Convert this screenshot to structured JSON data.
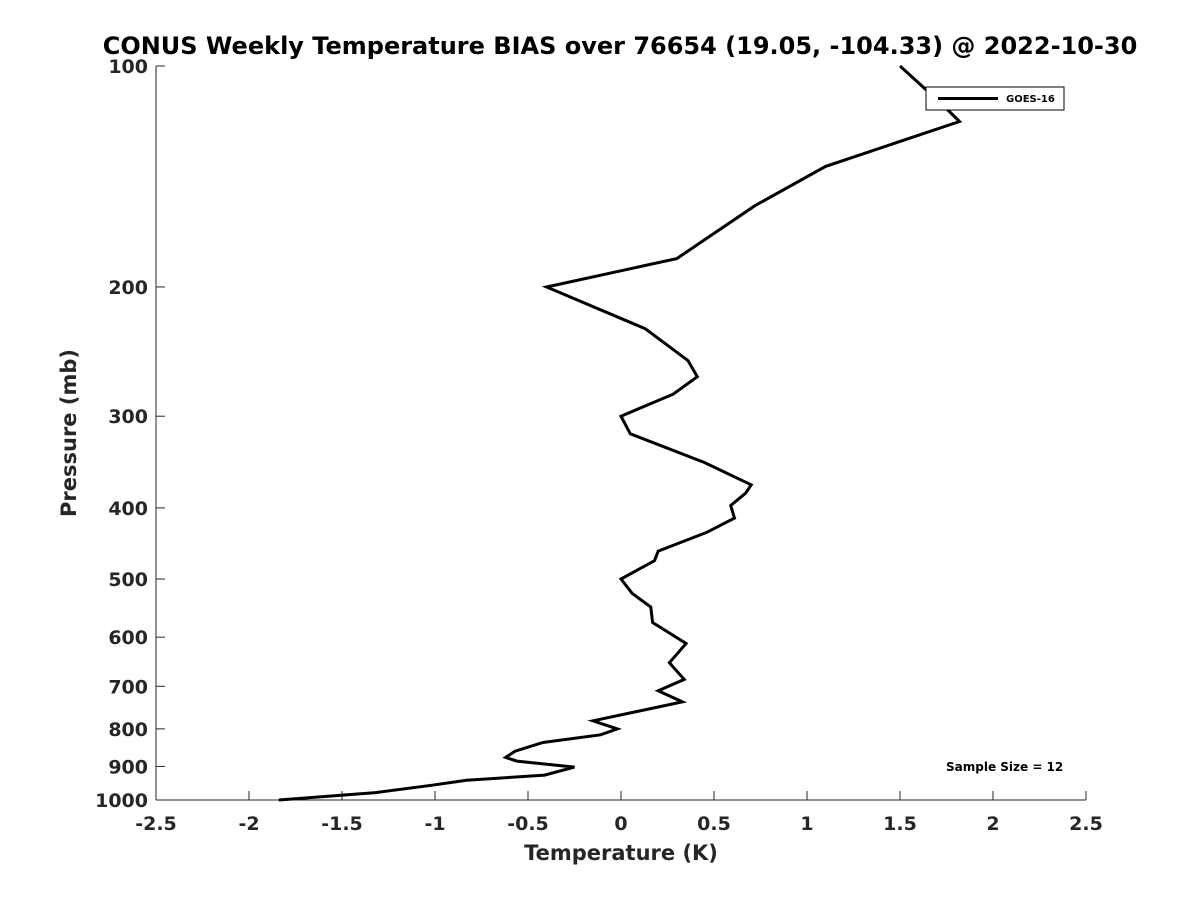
{
  "chart_data": {
    "type": "line",
    "title": "CONUS Weekly Temperature BIAS over 76654 (19.05, -104.33) @ 2022-10-30",
    "xlabel": "Temperature (K)",
    "ylabel": "Pressure (mb)",
    "xlim": [
      -2.5,
      2.5
    ],
    "ylim": [
      1000,
      100
    ],
    "yscale": "log",
    "y_reversed": true,
    "x_ticks": [
      -2.5,
      -2,
      -1.5,
      -1,
      -0.5,
      0,
      0.5,
      1,
      1.5,
      2,
      2.5
    ],
    "x_tick_labels": [
      "-2.5",
      "-2",
      "-1.5",
      "-1",
      "-0.5",
      "0",
      "0.5",
      "1",
      "1.5",
      "2",
      "2.5"
    ],
    "y_ticks": [
      100,
      200,
      300,
      400,
      500,
      600,
      700,
      800,
      900,
      1000
    ],
    "y_tick_labels": [
      "100",
      "200",
      "300",
      "400",
      "500",
      "600",
      "700",
      "800",
      "900",
      "1000"
    ],
    "grid": false,
    "legend_position": "top-right",
    "annotation": "Sample Size = 12",
    "series": [
      {
        "name": "GOES-16",
        "color": "#000000",
        "points": [
          {
            "x": 1.5,
            "y": 100
          },
          {
            "x": 1.73,
            "y": 113
          },
          {
            "x": 1.82,
            "y": 119
          },
          {
            "x": 1.1,
            "y": 137
          },
          {
            "x": 0.72,
            "y": 155
          },
          {
            "x": 0.3,
            "y": 183
          },
          {
            "x": -0.4,
            "y": 200
          },
          {
            "x": 0.13,
            "y": 228
          },
          {
            "x": 0.36,
            "y": 252
          },
          {
            "x": 0.41,
            "y": 265
          },
          {
            "x": 0.28,
            "y": 280
          },
          {
            "x": 0.0,
            "y": 300
          },
          {
            "x": 0.05,
            "y": 317
          },
          {
            "x": 0.45,
            "y": 347
          },
          {
            "x": 0.7,
            "y": 372
          },
          {
            "x": 0.67,
            "y": 382
          },
          {
            "x": 0.59,
            "y": 397
          },
          {
            "x": 0.61,
            "y": 413
          },
          {
            "x": 0.46,
            "y": 432
          },
          {
            "x": 0.2,
            "y": 458
          },
          {
            "x": 0.18,
            "y": 472
          },
          {
            "x": 0.0,
            "y": 500
          },
          {
            "x": 0.06,
            "y": 523
          },
          {
            "x": 0.16,
            "y": 546
          },
          {
            "x": 0.17,
            "y": 573
          },
          {
            "x": 0.35,
            "y": 612
          },
          {
            "x": 0.3,
            "y": 633
          },
          {
            "x": 0.26,
            "y": 650
          },
          {
            "x": 0.34,
            "y": 685
          },
          {
            "x": 0.2,
            "y": 710
          },
          {
            "x": 0.33,
            "y": 735
          },
          {
            "x": -0.15,
            "y": 780
          },
          {
            "x": -0.02,
            "y": 800
          },
          {
            "x": -0.11,
            "y": 815
          },
          {
            "x": -0.42,
            "y": 835
          },
          {
            "x": -0.57,
            "y": 858
          },
          {
            "x": -0.62,
            "y": 875
          },
          {
            "x": -0.56,
            "y": 885
          },
          {
            "x": -0.25,
            "y": 902
          },
          {
            "x": -0.41,
            "y": 925
          },
          {
            "x": -0.83,
            "y": 940
          },
          {
            "x": -1.02,
            "y": 955
          },
          {
            "x": -1.32,
            "y": 977
          },
          {
            "x": -1.84,
            "y": 1000
          }
        ]
      }
    ]
  }
}
